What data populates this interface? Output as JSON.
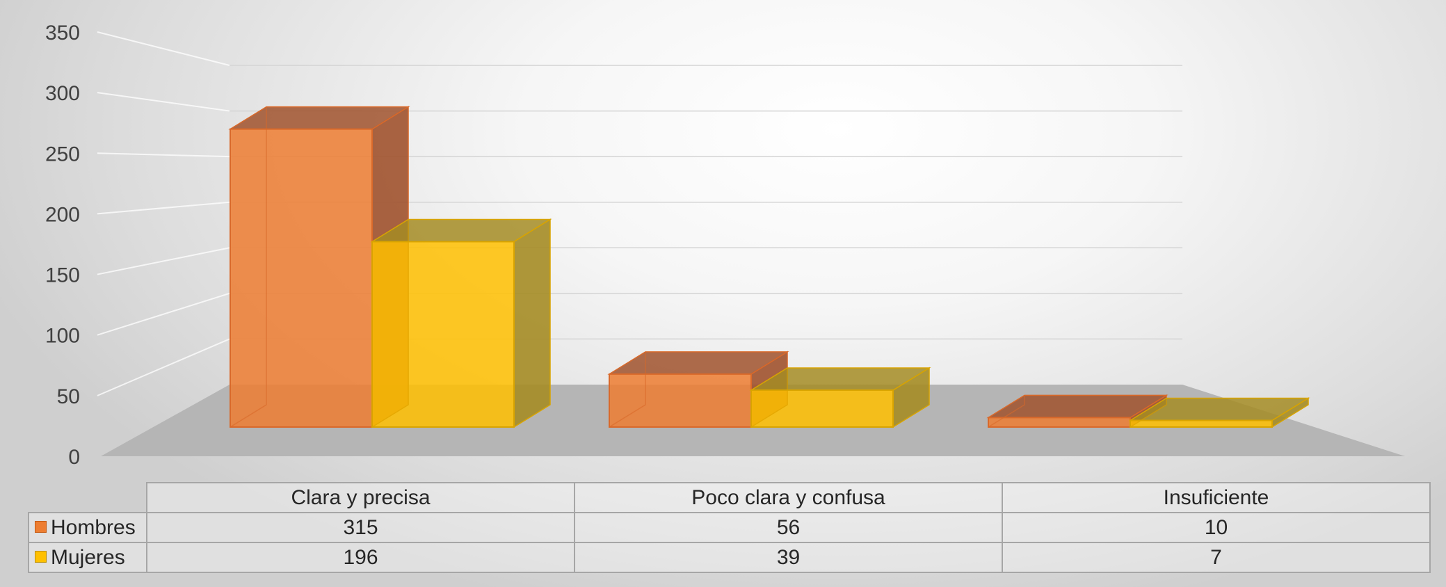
{
  "chart_data": {
    "type": "bar",
    "categories": [
      "Clara y precisa",
      "Poco clara y confusa",
      "Insuficiente"
    ],
    "series": [
      {
        "name": "Hombres",
        "values": [
          315,
          56,
          10
        ],
        "color": "#ED7D31",
        "side_color": "#A0522D"
      },
      {
        "name": "Mujeres",
        "values": [
          196,
          39,
          7
        ],
        "color": "#FFC000",
        "side_color": "#A58C25"
      }
    ],
    "y_ticks": [
      "0",
      "50",
      "100",
      "150",
      "200",
      "250",
      "300",
      "350"
    ],
    "ylim": [
      0,
      350
    ],
    "grid": true,
    "legend": "data-table-below",
    "table": {
      "rows": [
        {
          "label": "Hombres",
          "values": [
            "315",
            "56",
            "10"
          ]
        },
        {
          "label": "Mujeres",
          "values": [
            "196",
            "39",
            "7"
          ]
        }
      ]
    }
  }
}
